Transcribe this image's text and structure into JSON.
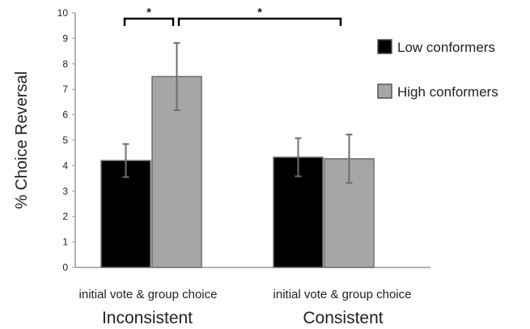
{
  "chart_data": {
    "type": "bar",
    "ylabel": "% Choice Reversal",
    "ylim": [
      0,
      10
    ],
    "yticks": [
      "0",
      "1",
      "2",
      "3",
      "4",
      "5",
      "6",
      "7",
      "8",
      "9",
      "10"
    ],
    "grid": false,
    "legend_position": "top-right",
    "categories": [
      {
        "sublabel": "initial vote & group choice",
        "label": "Inconsistent"
      },
      {
        "sublabel": "initial vote & group choice",
        "label": "Consistent"
      }
    ],
    "series": [
      {
        "name": "Low conformers",
        "color": "#000000",
        "values": [
          4.2,
          4.33
        ],
        "errors": [
          0.65,
          0.75
        ]
      },
      {
        "name": "High conformers",
        "color": "#a6a6a6",
        "values": [
          7.5,
          4.27
        ],
        "errors": [
          1.32,
          0.95
        ]
      }
    ],
    "significance": [
      {
        "label": "*",
        "between": "Inconsistent: Low conformers vs High conformers"
      },
      {
        "label": "*",
        "between": "High conformers: Inconsistent vs Consistent"
      }
    ]
  }
}
